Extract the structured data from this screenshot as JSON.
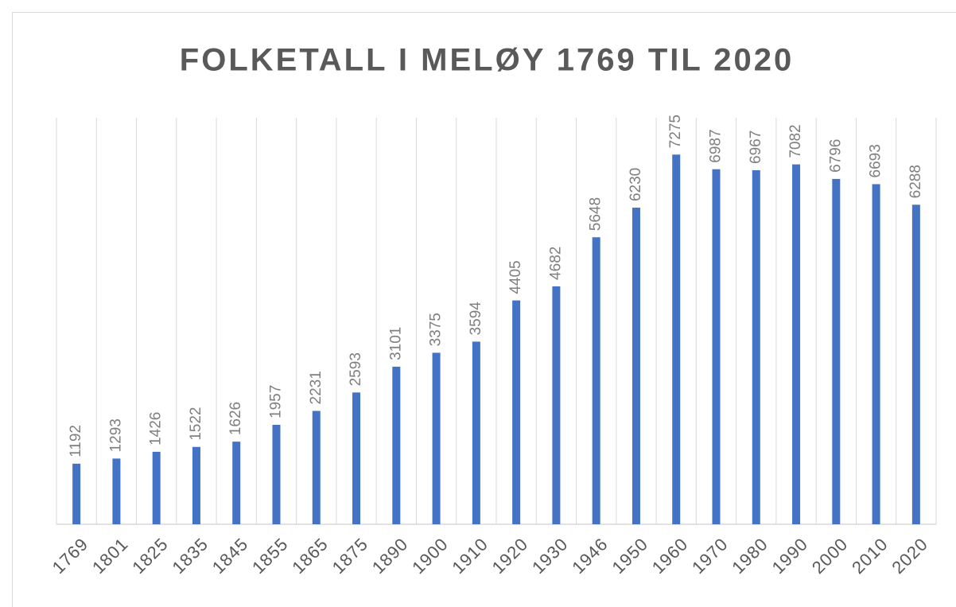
{
  "chart_data": {
    "type": "bar",
    "title": "FOLKETALL I MELØY 1769 TIL 2020",
    "categories": [
      "1769",
      "1801",
      "1825",
      "1835",
      "1845",
      "1855",
      "1865",
      "1875",
      "1890",
      "1900",
      "1910",
      "1920",
      "1930",
      "1946",
      "1950",
      "1960",
      "1970",
      "1980",
      "1990",
      "2000",
      "2010",
      "2020"
    ],
    "values": [
      1192,
      1293,
      1426,
      1522,
      1626,
      1957,
      2231,
      2593,
      3101,
      3375,
      3594,
      4405,
      4682,
      5648,
      6230,
      7275,
      6987,
      6967,
      7082,
      6796,
      6693,
      6288
    ],
    "color": "#4472c4",
    "ylim": [
      0,
      8000
    ],
    "grid": true
  }
}
